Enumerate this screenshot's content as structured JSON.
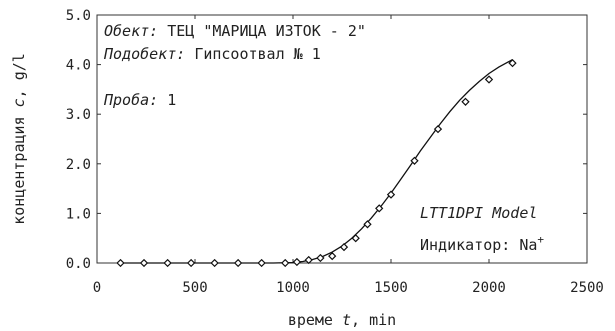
{
  "chart_data": {
    "type": "scatter",
    "xlabel": {
      "prefix": "време ",
      "var": "t",
      "suffix": ", min"
    },
    "ylabel": {
      "prefix": "концентрация ",
      "var": "c",
      "suffix": ", g/l"
    },
    "xlim": [
      0,
      2500
    ],
    "ylim": [
      0,
      5
    ],
    "xticks": [
      0,
      500,
      1000,
      1500,
      2000,
      2500
    ],
    "xtick_labels": [
      "0",
      "500",
      "1000",
      "1500",
      "2000",
      "2500"
    ],
    "yticks": [
      0,
      1,
      2,
      3,
      4,
      5
    ],
    "ytick_labels": [
      "0.0",
      "1.0",
      "2.0",
      "3.0",
      "4.0",
      "5.0"
    ],
    "grid": false,
    "annotations": {
      "object_label": "Обект:",
      "object_value": "ТЕЦ \"МАРИЦА ИЗТОК - 2\"",
      "subobject_label": "Подобект:",
      "subobject_value": "Гипсоотвал № 1",
      "sample_label": "Проба:",
      "sample_value": "1",
      "model": "LTT1DPI Model",
      "indicator_label": "Индикатор: Na",
      "indicator_sup": "+"
    },
    "series": [
      {
        "kind": "scatter",
        "marker": "diamond",
        "x": [
          120,
          240,
          360,
          480,
          600,
          720,
          840,
          960,
          1020,
          1080,
          1140,
          1200,
          1260,
          1320,
          1380,
          1440,
          1500,
          1620,
          1740,
          1880,
          2000,
          2120
        ],
        "y": [
          0.0,
          0.0,
          0.0,
          0.0,
          0.0,
          0.0,
          0.0,
          0.0,
          0.02,
          0.06,
          0.1,
          0.14,
          0.32,
          0.5,
          0.78,
          1.1,
          1.38,
          2.06,
          2.7,
          3.25,
          3.7,
          4.03
        ]
      },
      {
        "kind": "line",
        "x": [
          120,
          900,
          1000,
          1050,
          1100,
          1150,
          1200,
          1250,
          1300,
          1350,
          1400,
          1450,
          1500,
          1550,
          1600,
          1650,
          1700,
          1750,
          1800,
          1850,
          1900,
          1950,
          2000,
          2050,
          2120
        ],
        "y": [
          0.0,
          0.0,
          0.01,
          0.03,
          0.07,
          0.13,
          0.22,
          0.34,
          0.5,
          0.69,
          0.91,
          1.15,
          1.41,
          1.69,
          1.97,
          2.26,
          2.53,
          2.8,
          3.05,
          3.28,
          3.48,
          3.66,
          3.82,
          3.95,
          4.1
        ]
      }
    ]
  }
}
